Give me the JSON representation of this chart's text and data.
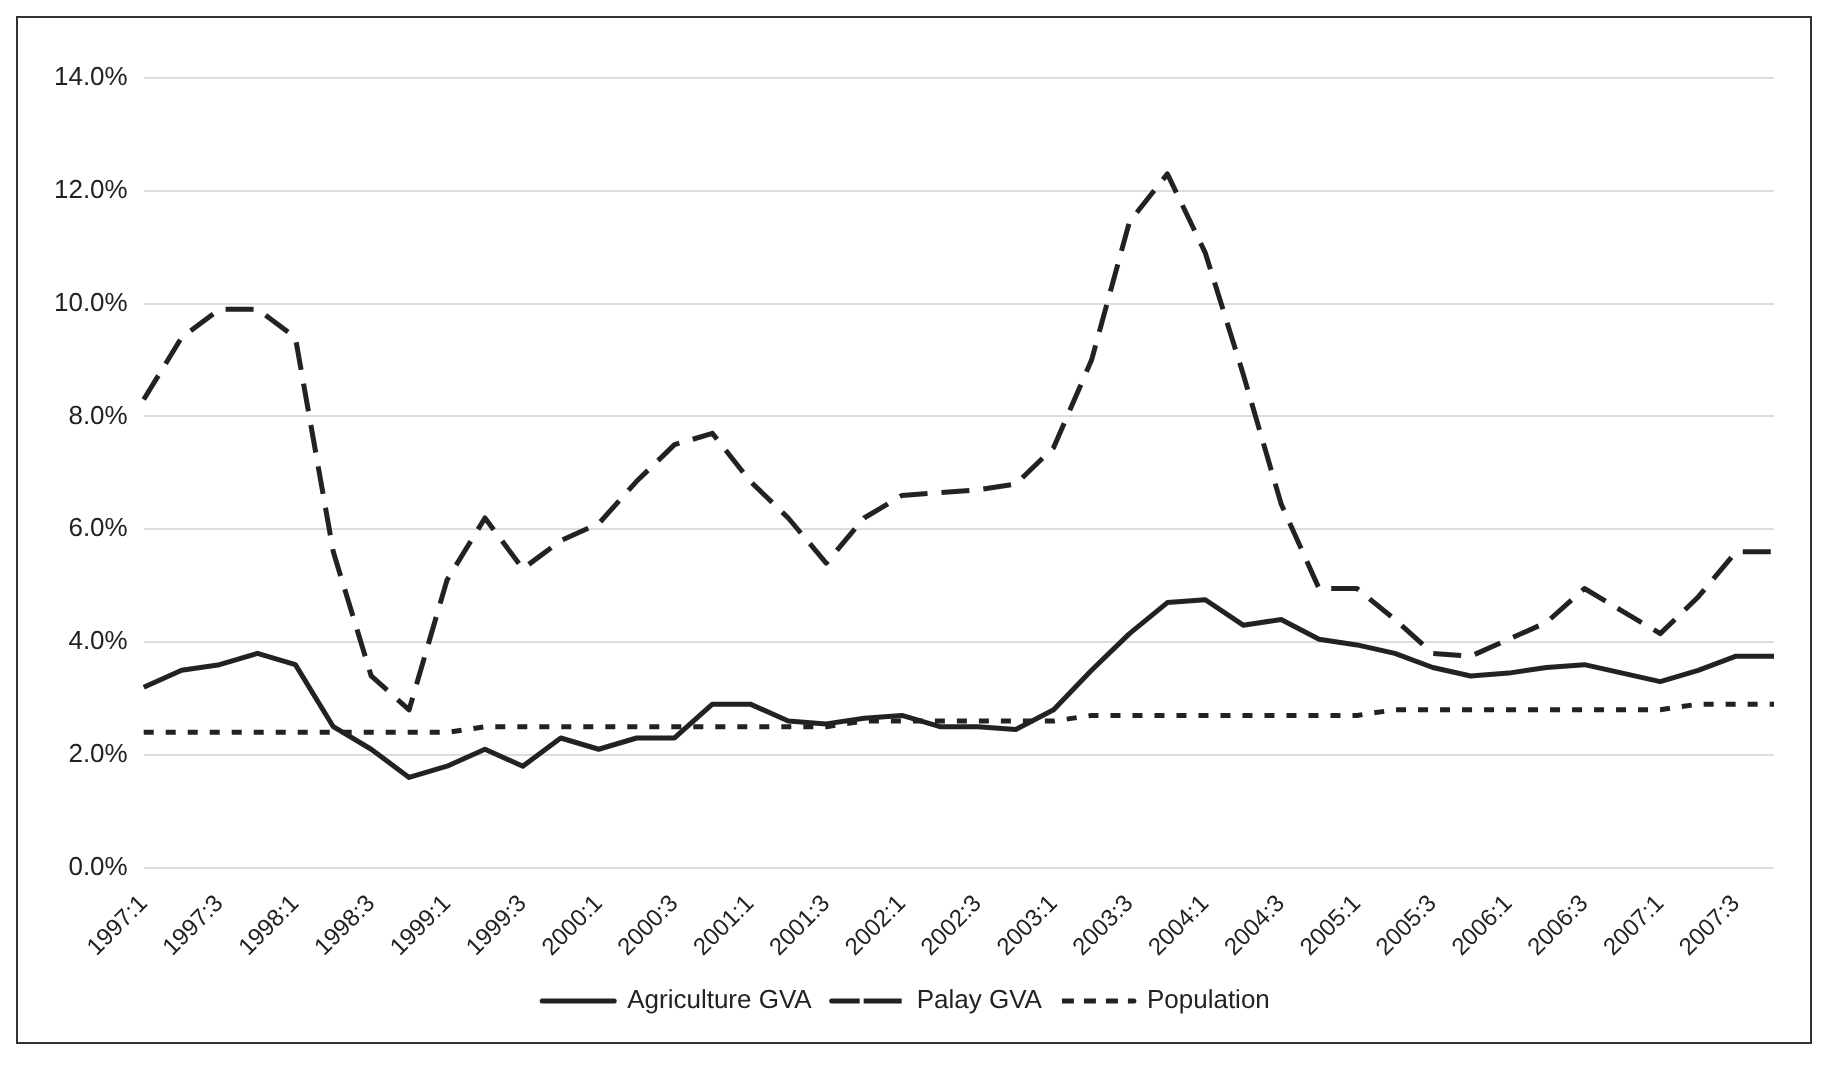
{
  "chart_data": {
    "type": "line",
    "categories": [
      "1997:1",
      null,
      "1997:3",
      null,
      "1998:1",
      null,
      "1998:3",
      null,
      "1999:1",
      null,
      "1999:3",
      null,
      "2000:1",
      null,
      "2000:3",
      null,
      "2001:1",
      null,
      "2001:3",
      null,
      "2002:1",
      null,
      "2002:3",
      null,
      "2003:1",
      null,
      "2003:3",
      null,
      "2004:1",
      null,
      "2004:3",
      null,
      "2005:1",
      null,
      "2005:3",
      null,
      "2006:1",
      null,
      "2006:3",
      null,
      "2007:1",
      null,
      "2007:3",
      null
    ],
    "series": [
      {
        "name": "Agriculture GVA",
        "color": "#222222",
        "line_style": "solid",
        "values": [
          3.2,
          3.5,
          3.6,
          3.8,
          3.6,
          2.5,
          2.1,
          1.6,
          1.8,
          2.1,
          1.8,
          2.3,
          2.1,
          2.3,
          2.3,
          2.9,
          2.9,
          2.6,
          2.55,
          2.65,
          2.7,
          2.5,
          2.5,
          2.45,
          2.8,
          3.5,
          4.15,
          4.7,
          4.75,
          4.3,
          4.4,
          4.05,
          3.95,
          3.8,
          3.55,
          3.4,
          3.45,
          3.55,
          3.6,
          3.45,
          3.3,
          3.5,
          3.75,
          3.75
        ]
      },
      {
        "name": "Palay GVA",
        "color": "#222222",
        "line_style": "dashed",
        "values": [
          8.3,
          9.4,
          9.9,
          9.9,
          9.4,
          5.6,
          3.4,
          2.8,
          5.1,
          6.2,
          5.3,
          5.8,
          6.1,
          6.85,
          7.5,
          7.7,
          6.85,
          6.2,
          5.4,
          6.2,
          6.6,
          6.65,
          6.7,
          6.8,
          7.45,
          9.0,
          11.45,
          12.3,
          10.9,
          8.75,
          6.45,
          4.95,
          4.95,
          4.4,
          3.8,
          3.75,
          4.05,
          4.35,
          4.95,
          4.55,
          4.15,
          4.8,
          5.6,
          5.6
        ]
      },
      {
        "name": "Population",
        "color": "#222222",
        "line_style": "dotted",
        "values": [
          2.4,
          2.4,
          2.4,
          2.4,
          2.4,
          2.4,
          2.4,
          2.4,
          2.4,
          2.5,
          2.5,
          2.5,
          2.5,
          2.5,
          2.5,
          2.5,
          2.5,
          2.5,
          2.5,
          2.6,
          2.6,
          2.6,
          2.6,
          2.6,
          2.6,
          2.7,
          2.7,
          2.7,
          2.7,
          2.7,
          2.7,
          2.7,
          2.7,
          2.8,
          2.8,
          2.8,
          2.8,
          2.8,
          2.8,
          2.8,
          2.8,
          2.9,
          2.9,
          2.9
        ]
      }
    ],
    "ylim": [
      0,
      14
    ],
    "yticks": [
      {
        "value": 0,
        "label": "0.0%"
      },
      {
        "value": 2,
        "label": "2.0%"
      },
      {
        "value": 4,
        "label": "4.0%"
      },
      {
        "value": 6,
        "label": "6.0%"
      },
      {
        "value": 8,
        "label": "8.0%"
      },
      {
        "value": 10,
        "label": "10.0%"
      },
      {
        "value": 12,
        "label": "12.0%"
      },
      {
        "value": 14,
        "label": "14.0%"
      }
    ],
    "grid": "y",
    "legend": "bottom",
    "marker": "none"
  }
}
